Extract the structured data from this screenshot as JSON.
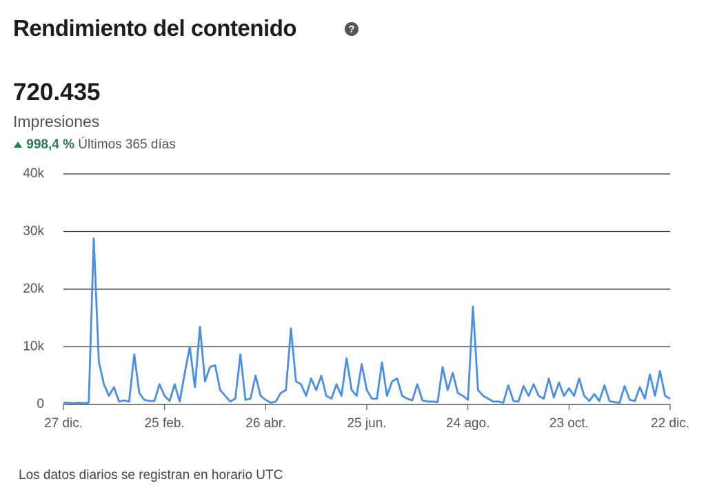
{
  "header": {
    "title": "Rendimiento del contenido",
    "total": "720.435",
    "metric": "Impresiones",
    "change": "998,4 %",
    "period": "Últimos 365 días"
  },
  "chart_data": {
    "type": "line",
    "categories": [
      "27 dic.",
      null,
      null,
      null,
      null,
      null,
      null,
      null,
      null,
      null,
      null,
      null,
      null,
      null,
      null,
      null,
      null,
      null,
      null,
      null,
      "25 feb.",
      null,
      null,
      null,
      null,
      null,
      null,
      null,
      null,
      null,
      null,
      null,
      null,
      null,
      null,
      null,
      null,
      null,
      null,
      null,
      "26 abr.",
      null,
      null,
      null,
      null,
      null,
      null,
      null,
      null,
      null,
      null,
      null,
      null,
      null,
      null,
      null,
      null,
      null,
      null,
      null,
      "25 jun.",
      null,
      null,
      null,
      null,
      null,
      null,
      null,
      null,
      null,
      null,
      null,
      null,
      null,
      null,
      null,
      null,
      null,
      null,
      null,
      "24 ago.",
      null,
      null,
      null,
      null,
      null,
      null,
      null,
      null,
      null,
      null,
      null,
      null,
      null,
      null,
      null,
      null,
      null,
      null,
      null,
      "23 oct.",
      null,
      null,
      null,
      null,
      null,
      null,
      null,
      null,
      null,
      null,
      null,
      null,
      null,
      null,
      null,
      null,
      null,
      null,
      null,
      "22 dic."
    ],
    "series": [
      {
        "name": "Impresiones",
        "color": "#4a8ee6",
        "values": [
          300,
          300,
          200,
          300,
          200,
          300,
          28800,
          7500,
          3500,
          1500,
          3000,
          500,
          700,
          500,
          8700,
          2000,
          800,
          600,
          600,
          3500,
          1500,
          600,
          3500,
          500,
          5500,
          10000,
          3000,
          13500,
          4000,
          6500,
          6800,
          2500,
          1500,
          500,
          1000,
          8700,
          800,
          1000,
          5000,
          1500,
          800,
          300,
          500,
          2000,
          2500,
          13200,
          4000,
          3500,
          1500,
          4500,
          2500,
          5000,
          1500,
          1000,
          3500,
          1500,
          8000,
          2500,
          1500,
          7000,
          2500,
          1000,
          1000,
          7300,
          1500,
          4000,
          4500,
          1500,
          1000,
          700,
          3500,
          700,
          500,
          500,
          400,
          6500,
          2500,
          5500,
          2000,
          1500,
          800,
          17000,
          2500,
          1500,
          1000,
          500,
          500,
          300,
          3300,
          600,
          500,
          3200,
          1500,
          3500,
          1500,
          1000,
          4500,
          1200,
          3800,
          1500,
          2800,
          1500,
          4500,
          1500,
          600,
          1800,
          600,
          3300,
          600,
          400,
          300,
          3200,
          800,
          600,
          3000,
          1000,
          5200,
          1500,
          5800,
          1500,
          1000
        ]
      }
    ],
    "ylim": [
      0,
      40000
    ],
    "yticks": [
      0,
      {
        "value": 10000,
        "label": "10k"
      },
      {
        "value": 20000,
        "label": "20k"
      },
      {
        "value": 30000,
        "label": "30k"
      },
      {
        "value": 40000,
        "label": "40k"
      }
    ],
    "grid": true
  },
  "footer": "Los datos diarios se registran en horario UTC"
}
